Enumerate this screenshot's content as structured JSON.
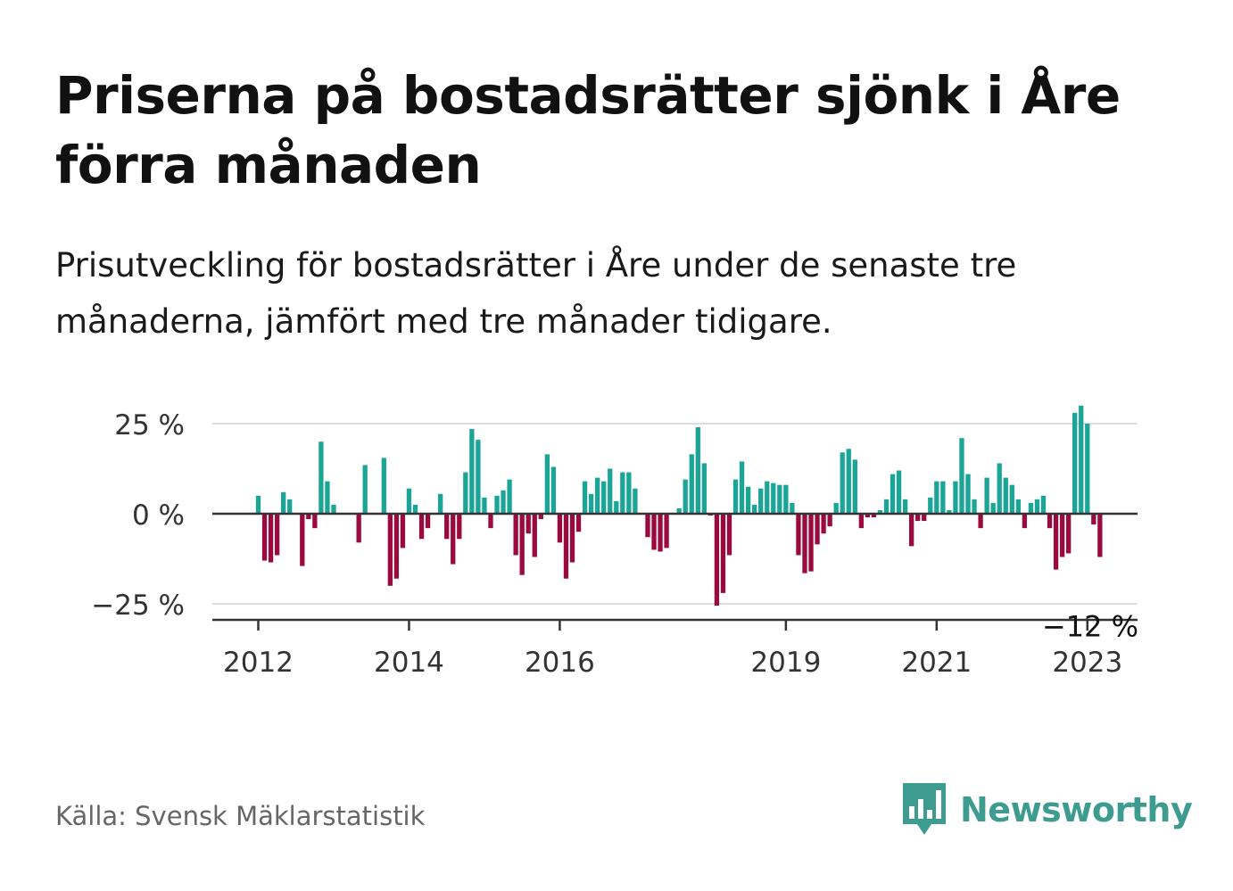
{
  "header": {
    "title": "Priserna på bostadsrätter sjönk i Åre förra månaden",
    "subtitle": "Prisutveckling för bostadsrätter i Åre under de senaste tre månaderna, jämfört med tre månader tidigare."
  },
  "footer": {
    "source": "Källa: Svensk Mäklarstatistik",
    "brand": "Newsworthy",
    "brand_icon": "bar-chart-speech-bubble-icon"
  },
  "colors": {
    "positive": "#1aa597",
    "negative": "#9b0a3e",
    "brand": "#3d9c8f",
    "grid": "#dddddd",
    "axis": "#333333"
  },
  "chart_data": {
    "type": "bar",
    "start_month": "2012-01",
    "frequency": "monthly",
    "values": [
      5,
      -13,
      -13.5,
      -11.5,
      6,
      4,
      0,
      -14.5,
      -1.5,
      -4,
      20,
      9,
      2.5,
      0,
      0,
      0,
      -8,
      13.5,
      0,
      0,
      15.5,
      -20,
      -18,
      -9.5,
      7,
      2.5,
      -7,
      -4,
      0,
      5.5,
      -7,
      -14,
      -7,
      11.5,
      23.5,
      20.5,
      4.5,
      -4,
      5,
      6.5,
      9.5,
      -11.5,
      -17,
      -5.5,
      -12,
      -1.5,
      16.5,
      13,
      -8,
      -18,
      -13.5,
      -5,
      9,
      5.5,
      10,
      9,
      12.5,
      3.5,
      11.5,
      11.5,
      7,
      0,
      -6.5,
      -10,
      -10.5,
      -9.5,
      0,
      1.5,
      9.5,
      16.5,
      24,
      14,
      -0.5,
      -25.5,
      -22,
      -11.5,
      9.5,
      14.5,
      7.5,
      2.5,
      7,
      9,
      8.5,
      8,
      8,
      3,
      -11.5,
      -16.5,
      -16,
      -8.5,
      -5.5,
      -3.5,
      3,
      17,
      18,
      15,
      -4,
      -1,
      -1,
      1,
      4,
      11,
      12,
      4,
      -9,
      -2,
      -2,
      4.5,
      9,
      9,
      1,
      9,
      21,
      11,
      4,
      -4,
      10,
      3,
      14,
      10,
      8,
      4,
      -4,
      3,
      4,
      5,
      -4,
      -15.5,
      -12,
      -11,
      28,
      30,
      25,
      -3,
      -12
    ],
    "last_value_label": "−12 %",
    "y_ticks": [
      25,
      0,
      -25
    ],
    "y_tick_labels": [
      "25 %",
      "0 %",
      "−25 %"
    ],
    "ylim": [
      -30,
      30
    ],
    "x_ticks": [
      "2012",
      "2014",
      "2016",
      "2019",
      "2021",
      "2023"
    ],
    "grid": true,
    "legend": "none"
  }
}
